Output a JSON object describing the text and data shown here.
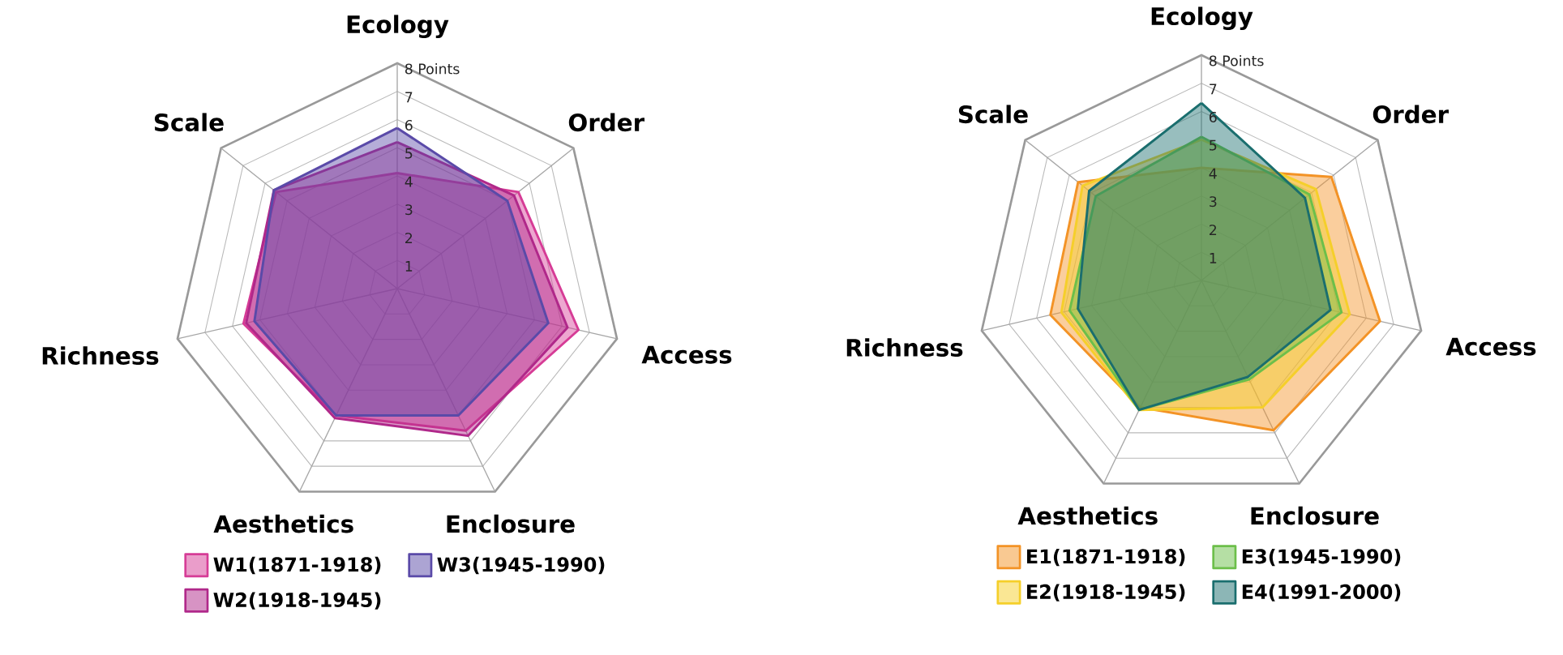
{
  "chart_data": [
    {
      "type": "radar",
      "categories": [
        "Ecology",
        "Order",
        "Access",
        "Enclosure",
        "Aesthetics",
        "Richness",
        "Scale"
      ],
      "ylim": [
        0,
        8
      ],
      "yticks": [
        1,
        2,
        3,
        4,
        5,
        6,
        7,
        {
          "value": 8,
          "label": "8 Points"
        }
      ],
      "grid": true,
      "legend": "bottom",
      "series": [
        {
          "name": "W1(1871-1918)",
          "color": "#d63c96",
          "values": [
            4.1,
            5.5,
            6.6,
            5.6,
            5.0,
            5.6,
            5.5
          ]
        },
        {
          "name": "W2(1918-1945)",
          "color": "#b0288a",
          "values": [
            5.2,
            5.3,
            6.2,
            5.8,
            5.1,
            5.5,
            5.6
          ]
        },
        {
          "name": "W3(1945-1990)",
          "color": "#5a4aa8",
          "values": [
            5.7,
            5.0,
            5.5,
            5.0,
            5.0,
            5.2,
            5.6
          ]
        }
      ]
    },
    {
      "type": "radar",
      "categories": [
        "Ecology",
        "Order",
        "Access",
        "Enclosure",
        "Aesthetics",
        "Richness",
        "Scale"
      ],
      "ylim": [
        0,
        8
      ],
      "yticks": [
        1,
        2,
        3,
        4,
        5,
        6,
        7,
        {
          "value": 8,
          "label": "8 Points"
        }
      ],
      "grid": true,
      "legend": "bottom",
      "series": [
        {
          "name": "E1(1871-1918)",
          "color": "#f39326",
          "values": [
            4.0,
            5.9,
            6.5,
            5.9,
            5.0,
            5.5,
            5.6
          ]
        },
        {
          "name": "E2(1918-1945)",
          "color": "#f5cf2a",
          "values": [
            5.0,
            5.2,
            5.4,
            5.0,
            5.1,
            5.1,
            5.4
          ]
        },
        {
          "name": "E3(1945-1990)",
          "color": "#6cbf4a",
          "values": [
            5.1,
            4.9,
            5.1,
            3.9,
            5.1,
            4.8,
            4.8
          ]
        },
        {
          "name": "E4(1991-2000)",
          "color": "#1a6e6e",
          "values": [
            6.3,
            4.7,
            4.7,
            3.8,
            5.1,
            4.5,
            5.1
          ]
        }
      ]
    }
  ]
}
